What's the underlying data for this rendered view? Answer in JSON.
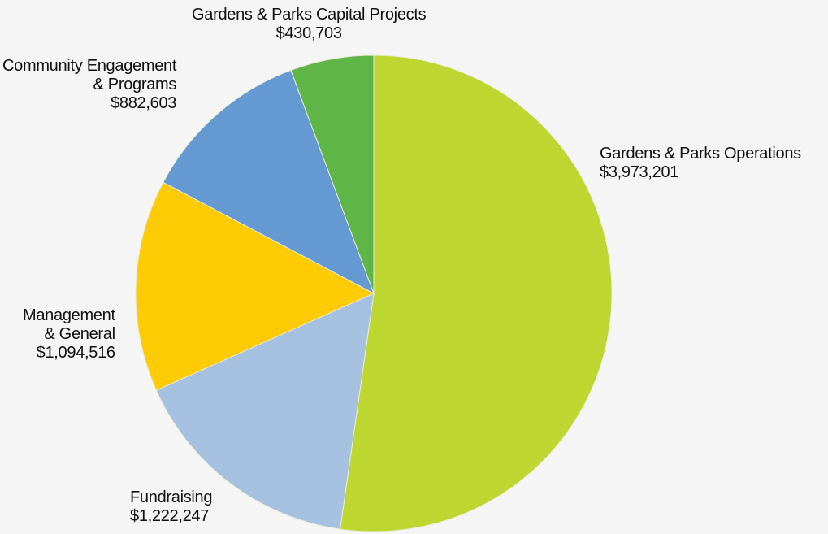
{
  "chart_data": {
    "type": "pie",
    "title": "",
    "start_angle_deg": 0,
    "direction": "clockwise",
    "center": [
      460,
      361
    ],
    "radius": 293,
    "slices": [
      {
        "name": "Gardens & Parks Operations",
        "value": 3973201,
        "value_label": "$3,973,201",
        "color": "#bed630"
      },
      {
        "name": "Fundraising",
        "value": 1222247,
        "value_label": "$1,222,247",
        "color": "#a6c0e0"
      },
      {
        "name": "Management & General",
        "value": 1094516,
        "value_label": "$1,094,516",
        "color": "#fecb05"
      },
      {
        "name": "Community Engagement & Programs",
        "value": 882603,
        "value_label": "$882,603",
        "color": "#6499d2"
      },
      {
        "name": "Gardens & Parks Capital Projects",
        "value": 430703,
        "value_label": "$430,703",
        "color": "#5fb646"
      }
    ]
  },
  "labels": {
    "operations": {
      "line1": "Gardens & Parks Operations",
      "value": "$3,973,201"
    },
    "fundraising": {
      "line1": "Fundraising",
      "value": "$1,222,247"
    },
    "management": {
      "line1": "Management",
      "line2": "& General",
      "value": "$1,094,516"
    },
    "community": {
      "line1": "Community Engagement",
      "line2": "& Programs",
      "value": "$882,603"
    },
    "capital": {
      "line1": "Gardens & Parks Capital Projects",
      "value": "$430,703"
    }
  }
}
